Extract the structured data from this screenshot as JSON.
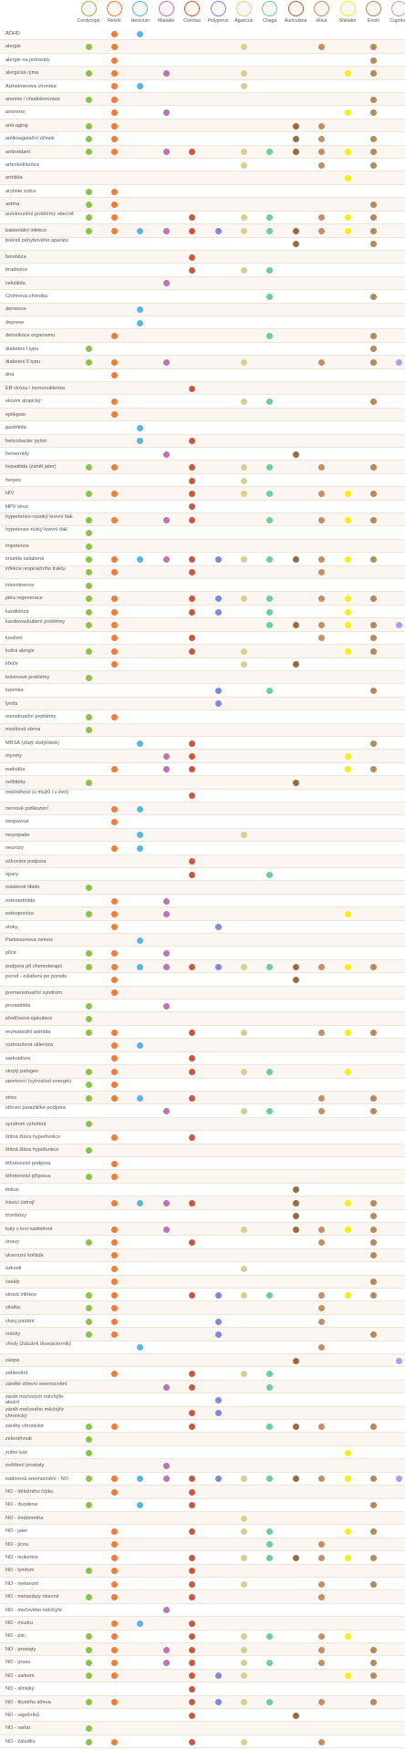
{
  "columns": [
    {
      "key": "cordyceps",
      "label": "Cordyceps",
      "color": "#8bc34a"
    },
    {
      "key": "reishi",
      "label": "Reishi",
      "color": "#ef7d3a"
    },
    {
      "key": "hericium",
      "label": "Hericium",
      "color": "#5bb6df"
    },
    {
      "key": "maitake",
      "label": "Maitake",
      "color": "#c073b4"
    },
    {
      "key": "coriolus",
      "label": "Coriolus",
      "color": "#c9583d"
    },
    {
      "key": "polyporus",
      "label": "Polyporus",
      "color": "#7e88de"
    },
    {
      "key": "agaricus",
      "label": "Agaricus",
      "color": "#d8cf8f"
    },
    {
      "key": "chaga",
      "label": "Chaga",
      "color": "#6fcca0"
    },
    {
      "key": "auricularia",
      "label": "Auricularia",
      "color": "#9c6a3e"
    },
    {
      "key": "hliva",
      "label": "Hlíva",
      "color": "#c98d62"
    },
    {
      "key": "shiitake",
      "label": "Shiitake",
      "color": "#f2ef1a"
    },
    {
      "key": "enoki",
      "label": "Enoki",
      "color": "#b38a5c"
    },
    {
      "key": "coprinus",
      "label": "Coprinus",
      "color": "#b79be8"
    }
  ],
  "rows": [
    {
      "label": "ADHD",
      "marks": [
        1,
        2
      ]
    },
    {
      "label": "alergie",
      "marks": [
        0,
        1,
        6,
        9,
        11
      ]
    },
    {
      "label": "alergie na potraviny",
      "marks": [
        1,
        11
      ]
    },
    {
      "label": "alergická rýma",
      "marks": [
        0,
        1,
        3,
        6,
        10,
        11
      ]
    },
    {
      "label": "Alzheimerova choroba",
      "marks": [
        1,
        2,
        6
      ]
    },
    {
      "label": "anemie / chudokrevnost",
      "marks": [
        0,
        1,
        11
      ]
    },
    {
      "label": "anorexie",
      "marks": [
        1,
        3,
        10,
        11
      ]
    },
    {
      "label": "anti-aging",
      "marks": [
        0,
        1,
        8,
        9
      ]
    },
    {
      "label": "antikoagulační účinek",
      "marks": [
        0,
        1,
        8,
        9,
        11
      ]
    },
    {
      "label": "antioxidant",
      "marks": [
        0,
        1,
        3,
        4,
        6,
        7,
        8,
        9,
        10,
        11
      ]
    },
    {
      "label": "arterioskleróza",
      "marks": [
        6,
        9,
        11
      ]
    },
    {
      "label": "artritida",
      "marks": [
        10
      ]
    },
    {
      "label": "arytmie srdce",
      "marks": [
        0,
        1
      ]
    },
    {
      "label": "astma",
      "marks": [
        0,
        1,
        11
      ]
    },
    {
      "label": "autoimunitní problémy obecně",
      "marks": [
        0,
        1,
        4,
        6,
        7,
        9,
        10,
        11
      ]
    },
    {
      "label": "bakteriální infekce",
      "marks": [
        0,
        1,
        2,
        3,
        4,
        5,
        6,
        7,
        8,
        9,
        10,
        11
      ]
    },
    {
      "label": "bolesti pohybového aparátu",
      "marks": [
        8,
        11
      ]
    },
    {
      "label": "borelióza",
      "marks": [
        4
      ]
    },
    {
      "label": "bradavice",
      "marks": [
        4,
        6,
        7
      ]
    },
    {
      "label": "celulitida",
      "marks": [
        3
      ]
    },
    {
      "label": "Crohnova choroba",
      "marks": [
        7,
        11
      ]
    },
    {
      "label": "demence",
      "marks": [
        2
      ]
    },
    {
      "label": "deprese",
      "marks": [
        2
      ]
    },
    {
      "label": "detoxikace organismu",
      "marks": [
        1,
        7,
        11
      ]
    },
    {
      "label": "diabetes I.typu",
      "marks": [
        0,
        11
      ]
    },
    {
      "label": "diabetes II.typu",
      "marks": [
        0,
        1,
        3,
        6,
        9,
        11,
        12
      ]
    },
    {
      "label": "dna",
      "marks": [
        1
      ]
    },
    {
      "label": "EB viróza / mononukleóza",
      "marks": [
        4
      ]
    },
    {
      "label": "ekzém atopický",
      "marks": [
        1,
        6,
        7,
        11
      ]
    },
    {
      "label": "epilepsie",
      "marks": [
        1
      ]
    },
    {
      "label": "gastritida",
      "marks": [
        2
      ]
    },
    {
      "label": "helicobacter pylori",
      "marks": [
        2,
        4
      ]
    },
    {
      "label": "hemeroidy",
      "marks": [
        3,
        8
      ]
    },
    {
      "label": "hepatitida (zánět jater)",
      "marks": [
        0,
        1,
        4,
        6,
        7,
        9,
        11
      ]
    },
    {
      "label": "herpes",
      "marks": [
        4,
        6
      ]
    },
    {
      "label": "HIV",
      "marks": [
        0,
        1,
        4,
        6,
        7,
        9,
        10,
        11
      ]
    },
    {
      "label": "HPV virus",
      "marks": [
        4
      ]
    },
    {
      "label": "hypertenze-vysoký krevní tlak",
      "marks": [
        0,
        1,
        3,
        4,
        7,
        9,
        10,
        11
      ]
    },
    {
      "label": "hypotenze-nízký krevní tlak",
      "marks": [
        0
      ]
    },
    {
      "label": "impotence",
      "marks": [
        0
      ]
    },
    {
      "label": "imunita oslabená",
      "marks": [
        0,
        1,
        2,
        3,
        4,
        5,
        6,
        7,
        8,
        9,
        10,
        11
      ]
    },
    {
      "label": "infekce respiračního traktu",
      "marks": [
        0,
        1,
        4,
        9
      ]
    },
    {
      "label": "inkontinence",
      "marks": [
        0
      ]
    },
    {
      "label": "játra regenerace",
      "marks": [
        0,
        1,
        4,
        5,
        6,
        7,
        9,
        10,
        11
      ]
    },
    {
      "label": "kandidóza",
      "marks": [
        0,
        1,
        4,
        5,
        7,
        10
      ]
    },
    {
      "label": "kardiovaskulární problémy",
      "marks": [
        0,
        1,
        7,
        8,
        9,
        10,
        11,
        12
      ]
    },
    {
      "label": "kouření",
      "marks": [
        1,
        4,
        9,
        11
      ]
    },
    {
      "label": "kožní alergie",
      "marks": [
        0,
        1,
        4,
        6,
        10,
        11
      ]
    },
    {
      "label": "křeče",
      "marks": [
        1,
        6,
        8
      ]
    },
    {
      "label": "ledvinové problémy",
      "marks": [
        0
      ]
    },
    {
      "label": "lupénka",
      "marks": [
        5,
        7,
        11
      ]
    },
    {
      "label": "lymfa",
      "marks": [
        5
      ]
    },
    {
      "label": "menstruační problémy",
      "marks": [
        0,
        1
      ]
    },
    {
      "label": "mozková obrna",
      "marks": [
        0
      ]
    },
    {
      "label": "MRSA (zlatý stafylokok)",
      "marks": [
        2,
        4,
        11
      ]
    },
    {
      "label": "myomy",
      "marks": [
        3,
        4,
        10
      ]
    },
    {
      "label": "nadváha",
      "marks": [
        1,
        3,
        4,
        10,
        11
      ]
    },
    {
      "label": "neflóbiky",
      "marks": [
        0,
        8
      ]
    },
    {
      "label": "neplodnost (u mužů i u žen)",
      "marks": [
        4
      ]
    },
    {
      "label": "nervové poškození",
      "marks": [
        1,
        2
      ]
    },
    {
      "label": "nespavost",
      "marks": [
        1
      ]
    },
    {
      "label": "neuropatie",
      "marks": [
        2,
        6
      ]
    },
    {
      "label": "neurózy",
      "marks": [
        1,
        2
      ]
    },
    {
      "label": "očkování podpora",
      "marks": [
        4
      ]
    },
    {
      "label": "opary",
      "marks": [
        4,
        7
      ]
    },
    {
      "label": "oslabené libido",
      "marks": [
        0
      ]
    },
    {
      "label": "osteoartritida",
      "marks": [
        1,
        3
      ]
    },
    {
      "label": "osteoporóza",
      "marks": [
        0,
        1,
        3,
        10
      ]
    },
    {
      "label": "otoky",
      "marks": [
        1,
        5
      ]
    },
    {
      "label": "Parkinsonova nemoc",
      "marks": [
        2
      ]
    },
    {
      "label": "plíce",
      "marks": [
        0,
        1,
        3
      ]
    },
    {
      "label": "podpora při chemoterapii",
      "marks": [
        0,
        1,
        2,
        3,
        4,
        5,
        6,
        7,
        8,
        9,
        10,
        11
      ]
    },
    {
      "label": "porod - oslabení po porodu",
      "marks": [
        1,
        8
      ]
    },
    {
      "label": "premenstruační syndrom",
      "marks": [
        1
      ]
    },
    {
      "label": "prostatitida",
      "marks": [
        0,
        3
      ]
    },
    {
      "label": "předčasná ejakulace",
      "marks": [
        0
      ]
    },
    {
      "label": "revmatoidní artritida",
      "marks": [
        0,
        1,
        4,
        6,
        9,
        10,
        11
      ]
    },
    {
      "label": "roztroušená skleróza",
      "marks": [
        1,
        2
      ]
    },
    {
      "label": "sarkoidóza",
      "marks": [
        1,
        4
      ]
    },
    {
      "label": "skrytý patogen",
      "marks": [
        0,
        1,
        4,
        6,
        7,
        10
      ]
    },
    {
      "label": "sportovní (vytrvalost energie)",
      "marks": [
        0,
        1
      ]
    },
    {
      "label": "stres",
      "marks": [
        0,
        1,
        2,
        4,
        9,
        11
      ]
    },
    {
      "label": "střevní paraziti/ke podpora",
      "marks": [
        3,
        6,
        7,
        9,
        11
      ]
    },
    {
      "label": "syndrom vyhoření",
      "marks": [
        0
      ]
    },
    {
      "label": "štítná žláza hyperfunkce",
      "marks": [
        1,
        4
      ]
    },
    {
      "label": "štítná žláza hypofunkce",
      "marks": [
        0
      ]
    },
    {
      "label": "těhotenství podpora",
      "marks": [
        1
      ]
    },
    {
      "label": "těhotenství příprava",
      "marks": [
        0,
        1
      ]
    },
    {
      "label": "tinitus",
      "marks": [
        8
      ]
    },
    {
      "label": "trávicí ústrojí",
      "marks": [
        1,
        2,
        3,
        4,
        8,
        10,
        11
      ]
    },
    {
      "label": "trombózy",
      "marks": [
        8,
        11
      ]
    },
    {
      "label": "tuky v krvi nadměrné",
      "marks": [
        1,
        3,
        6,
        8,
        9,
        10,
        11
      ]
    },
    {
      "label": "únavy",
      "marks": [
        0,
        1,
        4,
        9,
        11
      ]
    },
    {
      "label": "ulcerózní kolitida",
      "marks": [
        1,
        11
      ]
    },
    {
      "label": "úzkosti",
      "marks": [
        1,
        6
      ]
    },
    {
      "label": "vaskly",
      "marks": [
        1,
        11
      ]
    },
    {
      "label": "virová infekce",
      "marks": [
        0,
        1,
        4,
        5,
        6,
        7,
        9,
        10,
        11
      ]
    },
    {
      "label": "vitalita",
      "marks": [
        0,
        1,
        9
      ]
    },
    {
      "label": "vlasy padání",
      "marks": [
        0,
        1,
        5,
        9
      ]
    },
    {
      "label": "vrásky",
      "marks": [
        0,
        1,
        5,
        11
      ]
    },
    {
      "label": "vředy (žaludek dvanácterník)",
      "marks": [
        2,
        9
      ]
    },
    {
      "label": "záopa",
      "marks": [
        8,
        12
      ]
    },
    {
      "label": "zahlenění",
      "marks": [
        1,
        4,
        6,
        7
      ]
    },
    {
      "label": "záněté střevní onemocnění",
      "marks": [
        3,
        4,
        7
      ]
    },
    {
      "label": "zánět močových měchýře akutní",
      "marks": [
        5
      ]
    },
    {
      "label": "zánět močového měchýře chronický",
      "marks": [
        4,
        5
      ]
    },
    {
      "label": "záněty chronické",
      "marks": [
        0,
        1,
        4,
        7,
        8,
        9,
        11
      ]
    },
    {
      "label": "zeleněhnuti",
      "marks": [
        0
      ]
    },
    {
      "label": "zubní kaz",
      "marks": [
        0,
        10
      ]
    },
    {
      "label": "zvětšení prostaty",
      "marks": [
        3
      ]
    },
    {
      "label": "nádorová onemocnění - NO",
      "marks": [
        0,
        1,
        2,
        3,
        4,
        5,
        6,
        7,
        8,
        9,
        10,
        11,
        12
      ]
    },
    {
      "label": "NO - děložního čípku",
      "marks": [
        1,
        4
      ]
    },
    {
      "label": "NO - duodena",
      "marks": [
        0,
        2,
        4,
        11
      ]
    },
    {
      "label": "NO - endometria",
      "marks": [
        6
      ]
    },
    {
      "label": "NO - jater",
      "marks": [
        1,
        4,
        6,
        7,
        10,
        11
      ]
    },
    {
      "label": "NO - jícnu",
      "marks": [
        1,
        7,
        9
      ]
    },
    {
      "label": "NO - leukemie",
      "marks": [
        1,
        4,
        6,
        7,
        8,
        9,
        10,
        11
      ]
    },
    {
      "label": "NO - lymfom",
      "marks": [
        0,
        1,
        4
      ]
    },
    {
      "label": "NO - melanom",
      "marks": [
        1,
        4,
        6,
        9,
        11
      ]
    },
    {
      "label": "NO - metastázy obecně",
      "marks": [
        0,
        1,
        4,
        9
      ]
    },
    {
      "label": "NO - močového měchýře",
      "marks": [
        3
      ]
    },
    {
      "label": "NO - mozku",
      "marks": [
        1,
        2,
        4
      ]
    },
    {
      "label": "NO - plic",
      "marks": [
        0,
        1,
        4,
        6,
        7,
        9,
        10
      ]
    },
    {
      "label": "NO - prostaty",
      "marks": [
        0,
        1,
        3,
        4,
        6,
        9,
        11
      ]
    },
    {
      "label": "NO - prsou",
      "marks": [
        0,
        1,
        3,
        4,
        6,
        7,
        9,
        11
      ]
    },
    {
      "label": "NO - sarkom",
      "marks": [
        0,
        1,
        4,
        5,
        6,
        10,
        11
      ]
    },
    {
      "label": "NO - slinivky",
      "marks": [
        4
      ]
    },
    {
      "label": "NO - tlustého střeva",
      "marks": [
        0,
        1,
        4,
        5,
        6,
        7,
        9,
        11
      ]
    },
    {
      "label": "NO - vaječníků",
      "marks": [
        4,
        8
      ]
    },
    {
      "label": "NO - varlat",
      "marks": [
        0
      ]
    },
    {
      "label": "NO - žaludku",
      "marks": [
        0,
        1,
        4,
        6,
        9
      ]
    }
  ]
}
